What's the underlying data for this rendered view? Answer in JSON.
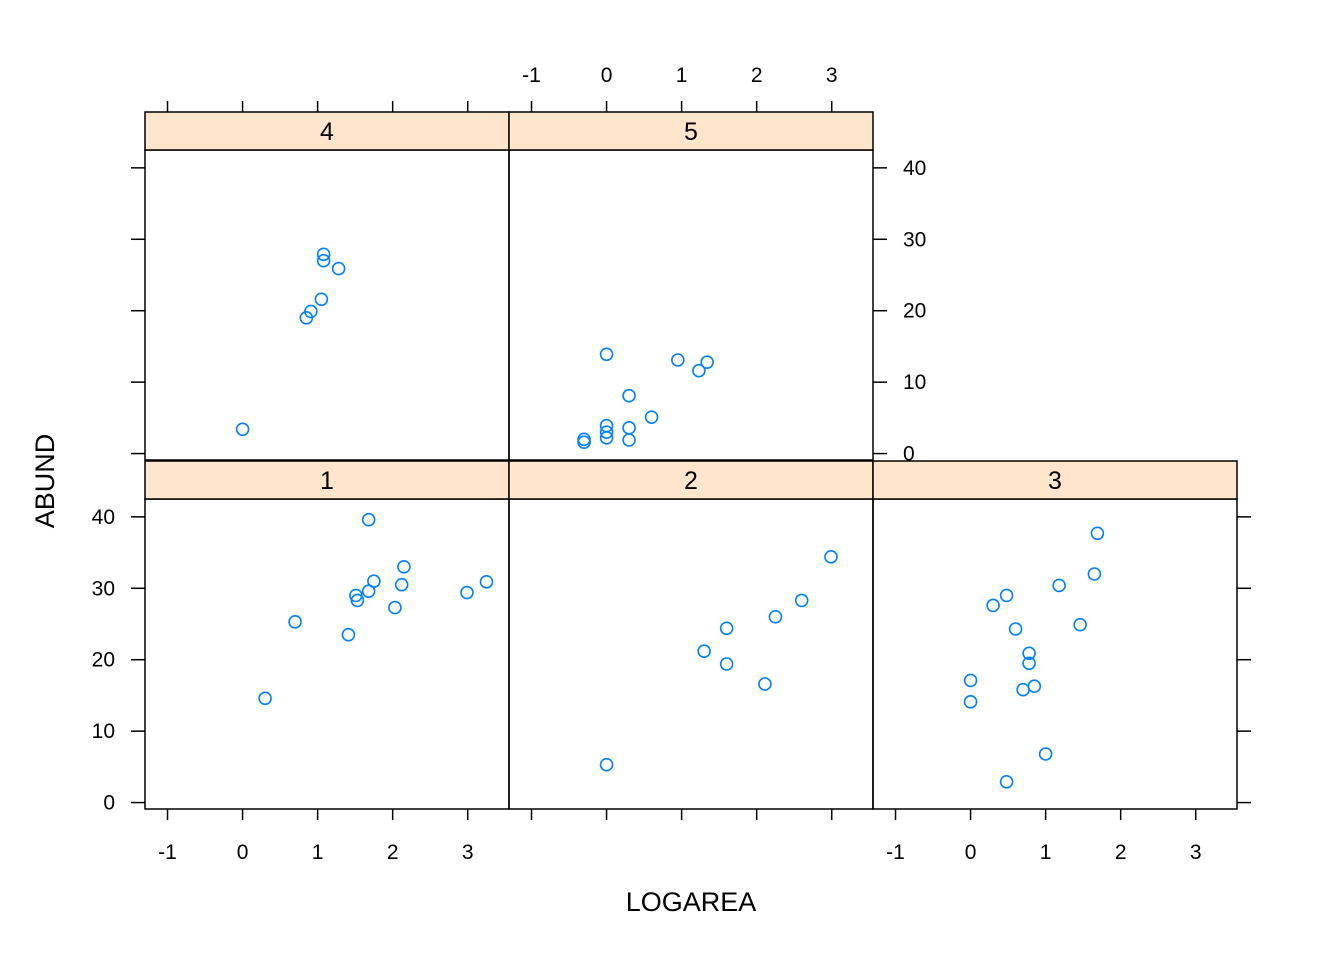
{
  "colors": {
    "point": "#0080ff",
    "strip": "#ffe5cc",
    "frame": "#000000"
  },
  "chart_data": {
    "type": "scatter",
    "layout": "trellis 3 columns x 2 rows, panels 1-3 bottom row, 4-5 top row",
    "xlabel": "LOGAREA",
    "ylabel": "ABUND",
    "xlim": [
      -1.3,
      3.55
    ],
    "ylim": [
      -0.9,
      42.5
    ],
    "x_ticks": [
      -1,
      0,
      1,
      2,
      3
    ],
    "y_ticks": [
      0,
      10,
      20,
      30,
      40
    ],
    "x_tick_labels": [
      "-1",
      "0",
      "1",
      "2",
      "3"
    ],
    "y_tick_labels": [
      "0",
      "10",
      "20",
      "30",
      "40"
    ],
    "grid": false,
    "panels": [
      {
        "label": "1",
        "points": [
          {
            "x": 0.3,
            "y": 14.6
          },
          {
            "x": 0.7,
            "y": 25.3
          },
          {
            "x": 1.41,
            "y": 23.5
          },
          {
            "x": 1.51,
            "y": 29.0
          },
          {
            "x": 1.53,
            "y": 28.3
          },
          {
            "x": 1.68,
            "y": 29.6
          },
          {
            "x": 1.68,
            "y": 39.6
          },
          {
            "x": 1.75,
            "y": 31.0
          },
          {
            "x": 2.03,
            "y": 27.3
          },
          {
            "x": 2.12,
            "y": 30.5
          },
          {
            "x": 2.15,
            "y": 33.0
          },
          {
            "x": 2.99,
            "y": 29.4
          },
          {
            "x": 3.25,
            "y": 30.9
          }
        ]
      },
      {
        "label": "2",
        "points": [
          {
            "x": 0.0,
            "y": 5.3
          },
          {
            "x": 1.3,
            "y": 21.2
          },
          {
            "x": 1.6,
            "y": 19.4
          },
          {
            "x": 1.6,
            "y": 24.4
          },
          {
            "x": 2.11,
            "y": 16.6
          },
          {
            "x": 2.25,
            "y": 26.0
          },
          {
            "x": 2.6,
            "y": 28.3
          },
          {
            "x": 2.99,
            "y": 34.4
          }
        ]
      },
      {
        "label": "3",
        "points": [
          {
            "x": 0.0,
            "y": 17.1
          },
          {
            "x": 0.0,
            "y": 14.1
          },
          {
            "x": 0.3,
            "y": 27.6
          },
          {
            "x": 0.48,
            "y": 29.0
          },
          {
            "x": 0.48,
            "y": 2.9
          },
          {
            "x": 0.6,
            "y": 24.3
          },
          {
            "x": 0.7,
            "y": 15.8
          },
          {
            "x": 0.78,
            "y": 20.9
          },
          {
            "x": 0.78,
            "y": 19.5
          },
          {
            "x": 0.85,
            "y": 16.3
          },
          {
            "x": 1.0,
            "y": 6.8
          },
          {
            "x": 1.18,
            "y": 30.4
          },
          {
            "x": 1.46,
            "y": 24.9
          },
          {
            "x": 1.65,
            "y": 32.0
          },
          {
            "x": 1.69,
            "y": 37.7
          }
        ]
      },
      {
        "label": "4",
        "points": [
          {
            "x": 0.0,
            "y": 3.4
          },
          {
            "x": 0.85,
            "y": 19.0
          },
          {
            "x": 0.91,
            "y": 19.9
          },
          {
            "x": 1.05,
            "y": 21.6
          },
          {
            "x": 1.08,
            "y": 27.9
          },
          {
            "x": 1.08,
            "y": 27.0
          },
          {
            "x": 1.28,
            "y": 25.9
          }
        ]
      },
      {
        "label": "5",
        "points": [
          {
            "x": 0.0,
            "y": 13.9
          },
          {
            "x": -0.3,
            "y": 2.0
          },
          {
            "x": -0.3,
            "y": 1.6
          },
          {
            "x": 0.0,
            "y": 3.9
          },
          {
            "x": 0.0,
            "y": 3.0
          },
          {
            "x": 0.0,
            "y": 2.2
          },
          {
            "x": 0.3,
            "y": 8.1
          },
          {
            "x": 0.3,
            "y": 3.6
          },
          {
            "x": 0.3,
            "y": 1.9
          },
          {
            "x": 0.6,
            "y": 5.1
          },
          {
            "x": 0.95,
            "y": 13.1
          },
          {
            "x": 1.23,
            "y": 11.6
          },
          {
            "x": 1.34,
            "y": 12.8
          }
        ]
      }
    ]
  }
}
